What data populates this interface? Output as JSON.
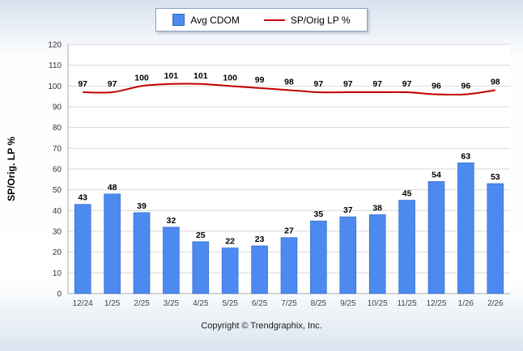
{
  "legend": {
    "items": [
      {
        "label": "Avg CDOM",
        "type": "bar",
        "color": "#4d8af0"
      },
      {
        "label": "SP/Orig LP %",
        "type": "line",
        "color": "#c00000"
      }
    ]
  },
  "footer": {
    "copyright": "Copyright © Trendgraphix, Inc."
  },
  "chart_data": {
    "type": "bar",
    "title": "",
    "categories": [
      "12/24",
      "1/25",
      "2/25",
      "3/25",
      "4/25",
      "5/25",
      "6/25",
      "7/25",
      "8/25",
      "9/25",
      "10/25",
      "11/25",
      "12/25",
      "1/26",
      "2/26"
    ],
    "series": [
      {
        "name": "Avg CDOM",
        "type": "bar",
        "color": "#4d8af0",
        "values": [
          43,
          48,
          39,
          32,
          25,
          22,
          23,
          27,
          35,
          37,
          38,
          45,
          54,
          63,
          53
        ]
      },
      {
        "name": "SP/Orig LP %",
        "type": "line",
        "color": "#c00000",
        "values": [
          97,
          97,
          100,
          101,
          101,
          100,
          99,
          98,
          97,
          97,
          97,
          97,
          96,
          96,
          98
        ]
      }
    ],
    "xlabel": "",
    "ylabel": "SP/Orig. LP %",
    "ylim": [
      0,
      120
    ],
    "ytick_step": 10,
    "grid": true,
    "legend_position": "top"
  }
}
